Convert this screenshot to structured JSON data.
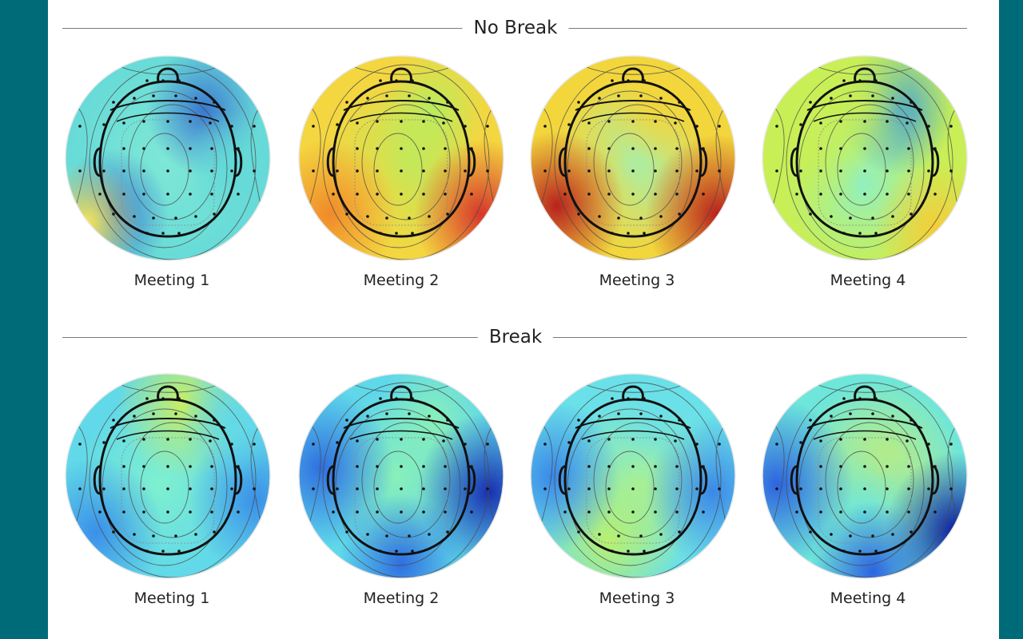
{
  "sections": [
    {
      "title": "No Break",
      "maps": [
        {
          "label": "Meeting 1",
          "palette": [
            "#7fe8d6",
            "#62d8d8",
            "#f3e35a",
            "#3a78d0"
          ],
          "scheme": "teal"
        },
        {
          "label": "Meeting 2",
          "palette": [
            "#b9ec5e",
            "#f4d640",
            "#f08a2a",
            "#d6362a"
          ],
          "scheme": "warm"
        },
        {
          "label": "Meeting 3",
          "palette": [
            "#9ef2b6",
            "#f2d63c",
            "#ef7a2a",
            "#b8221e"
          ],
          "scheme": "hot"
        },
        {
          "label": "Meeting 4",
          "palette": [
            "#8ff0c2",
            "#c8ef56",
            "#f5cc3a",
            "#3a9ee0"
          ],
          "scheme": "mixed"
        }
      ]
    },
    {
      "title": "Break",
      "maps": [
        {
          "label": "Meeting 1",
          "palette": [
            "#7ff0cf",
            "#62d9e8",
            "#3a90e8",
            "#c9ef62"
          ],
          "scheme": "cool"
        },
        {
          "label": "Meeting 2",
          "palette": [
            "#89f0b8",
            "#5fd8ea",
            "#2f6fe0",
            "#1830b0"
          ],
          "scheme": "blue"
        },
        {
          "label": "Meeting 3",
          "palette": [
            "#a6f09a",
            "#6ae0e8",
            "#3a88e8",
            "#b8f070"
          ],
          "scheme": "cyan"
        },
        {
          "label": "Meeting 4",
          "palette": [
            "#c8ee72",
            "#6ee6da",
            "#2d64e0",
            "#0d1a9a"
          ],
          "scheme": "deep"
        }
      ]
    }
  ]
}
